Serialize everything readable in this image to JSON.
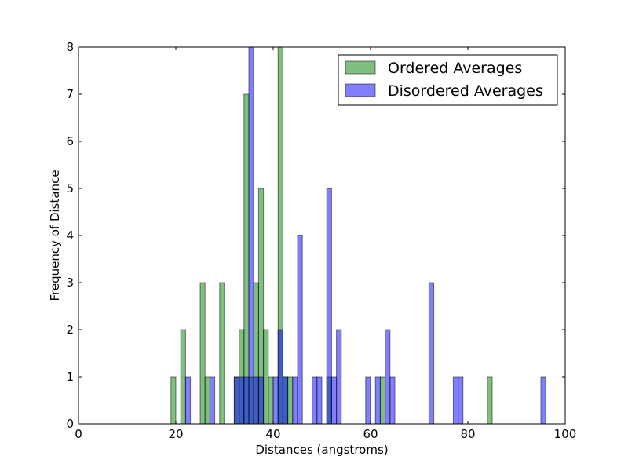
{
  "chart_data": {
    "type": "bar",
    "title": "",
    "xlabel": "Distances (angstroms)",
    "ylabel": "Frequency of Distance",
    "xlim": [
      0,
      100
    ],
    "ylim": [
      0,
      8
    ],
    "xticks": [
      0,
      20,
      40,
      60,
      80,
      100
    ],
    "yticks": [
      0,
      1,
      2,
      3,
      4,
      5,
      6,
      7,
      8
    ],
    "bin_width": 1,
    "grid": false,
    "legend_position": "top-right",
    "series": [
      {
        "name": "Ordered Averages",
        "color": "#008000",
        "alpha": 0.5,
        "bins": [
          {
            "x": 19.5,
            "y": 1
          },
          {
            "x": 21.5,
            "y": 2
          },
          {
            "x": 25.5,
            "y": 3
          },
          {
            "x": 26.5,
            "y": 1
          },
          {
            "x": 29.5,
            "y": 3
          },
          {
            "x": 32.5,
            "y": 1
          },
          {
            "x": 33.5,
            "y": 2
          },
          {
            "x": 34.5,
            "y": 7
          },
          {
            "x": 35.5,
            "y": 1
          },
          {
            "x": 36.5,
            "y": 3
          },
          {
            "x": 37.5,
            "y": 5
          },
          {
            "x": 38.5,
            "y": 2
          },
          {
            "x": 39.5,
            "y": 1
          },
          {
            "x": 41.5,
            "y": 8
          },
          {
            "x": 42.5,
            "y": 1
          },
          {
            "x": 43.5,
            "y": 1
          },
          {
            "x": 51.5,
            "y": 1
          },
          {
            "x": 62.5,
            "y": 1
          },
          {
            "x": 84.5,
            "y": 1
          }
        ]
      },
      {
        "name": "Disordered Averages",
        "color": "#0000ff",
        "alpha": 0.5,
        "bins": [
          {
            "x": 22.5,
            "y": 1
          },
          {
            "x": 27.5,
            "y": 1
          },
          {
            "x": 32.5,
            "y": 1
          },
          {
            "x": 33.5,
            "y": 1
          },
          {
            "x": 34.5,
            "y": 1
          },
          {
            "x": 35.5,
            "y": 8
          },
          {
            "x": 36.5,
            "y": 1
          },
          {
            "x": 37.5,
            "y": 1
          },
          {
            "x": 40.5,
            "y": 1
          },
          {
            "x": 41.5,
            "y": 2
          },
          {
            "x": 42.5,
            "y": 1
          },
          {
            "x": 44.5,
            "y": 1
          },
          {
            "x": 45.5,
            "y": 4
          },
          {
            "x": 48.5,
            "y": 1
          },
          {
            "x": 49.5,
            "y": 1
          },
          {
            "x": 51.5,
            "y": 5
          },
          {
            "x": 52.5,
            "y": 1
          },
          {
            "x": 53.5,
            "y": 2
          },
          {
            "x": 59.5,
            "y": 1
          },
          {
            "x": 61.5,
            "y": 1
          },
          {
            "x": 63.5,
            "y": 2
          },
          {
            "x": 64.5,
            "y": 1
          },
          {
            "x": 72.5,
            "y": 3
          },
          {
            "x": 77.5,
            "y": 1
          },
          {
            "x": 78.5,
            "y": 1
          },
          {
            "x": 95.5,
            "y": 1
          }
        ]
      }
    ]
  }
}
